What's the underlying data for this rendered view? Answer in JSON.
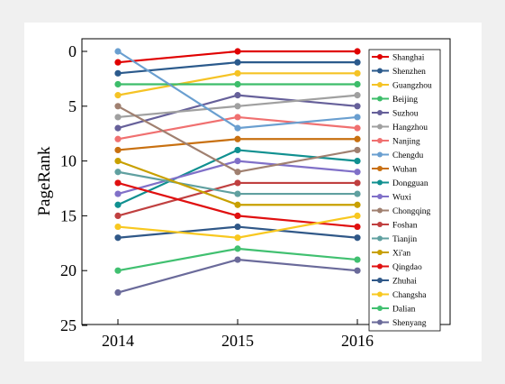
{
  "chart_data": {
    "type": "line",
    "title": "",
    "xlabel": "",
    "ylabel": "PageRank",
    "y_inverted": true,
    "ylim": [
      0,
      25
    ],
    "yticks": [
      0,
      5,
      10,
      15,
      20,
      25
    ],
    "categories": [
      "2014",
      "2015",
      "2016"
    ],
    "grid": false,
    "legend_position": "right",
    "series": [
      {
        "name": "Shanghai",
        "color": "#e00000",
        "values": [
          1,
          0,
          0
        ]
      },
      {
        "name": "Shenzhen",
        "color": "#2b5a8c",
        "values": [
          2,
          1,
          1
        ]
      },
      {
        "name": "Guangzhou",
        "color": "#f5c325",
        "values": [
          4,
          2,
          2
        ]
      },
      {
        "name": "Beijing",
        "color": "#3dbd6a",
        "values": [
          3,
          3,
          3
        ]
      },
      {
        "name": "Suzhou",
        "color": "#66609a",
        "values": [
          7,
          4,
          5
        ]
      },
      {
        "name": "Hangzhou",
        "color": "#a0a0a0",
        "values": [
          6,
          5,
          4
        ]
      },
      {
        "name": "Nanjing",
        "color": "#f07070",
        "values": [
          8,
          6,
          7
        ]
      },
      {
        "name": "Chengdu",
        "color": "#6a9fd0",
        "values": [
          0,
          7,
          6
        ]
      },
      {
        "name": "Wuhan",
        "color": "#c87010",
        "values": [
          9,
          8,
          8
        ]
      },
      {
        "name": "Dongguan",
        "color": "#109090",
        "values": [
          14,
          9,
          10
        ]
      },
      {
        "name": "Wuxi",
        "color": "#8070c8",
        "values": [
          13,
          10,
          11
        ]
      },
      {
        "name": "Chongqing",
        "color": "#a08070",
        "values": [
          5,
          11,
          9
        ]
      },
      {
        "name": "Foshan",
        "color": "#c04040",
        "values": [
          15,
          12,
          12
        ]
      },
      {
        "name": "Tianjin",
        "color": "#60a0a0",
        "values": [
          11,
          13,
          13
        ]
      },
      {
        "name": "Xi'an",
        "color": "#c8a000",
        "values": [
          10,
          14,
          14
        ]
      },
      {
        "name": "Qingdao",
        "color": "#e01010",
        "values": [
          12,
          15,
          16
        ]
      },
      {
        "name": "Zhuhai",
        "color": "#305888",
        "values": [
          17,
          16,
          17
        ]
      },
      {
        "name": "Changsha",
        "color": "#f8c820",
        "values": [
          16,
          17,
          15
        ]
      },
      {
        "name": "Dalian",
        "color": "#40c070",
        "values": [
          20,
          18,
          19
        ]
      },
      {
        "name": "Shenyang",
        "color": "#6a6a9a",
        "values": [
          22,
          19,
          20
        ]
      }
    ]
  }
}
